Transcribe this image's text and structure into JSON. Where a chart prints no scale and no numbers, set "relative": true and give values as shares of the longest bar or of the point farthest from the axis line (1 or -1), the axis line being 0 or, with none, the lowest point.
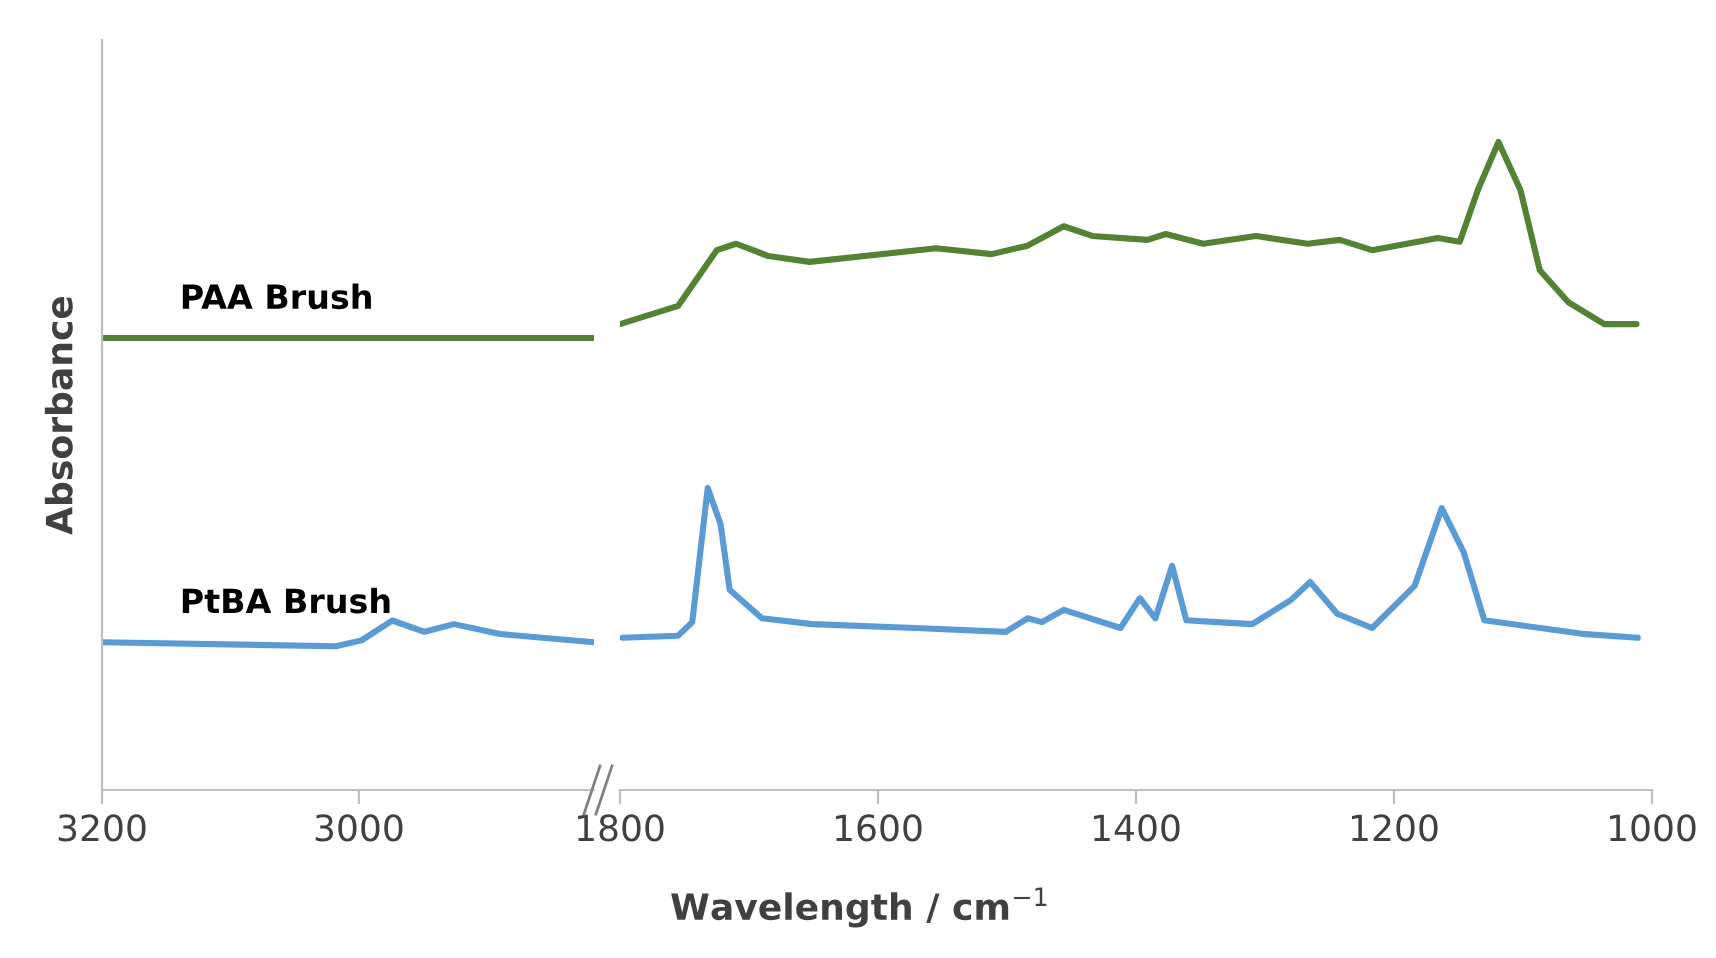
{
  "chart_data": [
    {
      "type": "line",
      "relative": true,
      "ylabel": "Absorbance",
      "xlim": [
        3200,
        2817
      ],
      "xticks": [
        3200,
        3000
      ],
      "grid": false,
      "legend": false,
      "series": [
        {
          "name": "PAA Brush",
          "color": "#548235",
          "x": [
            3200,
            2817
          ],
          "values": [
            1.0,
            1.0
          ]
        },
        {
          "name": "PtBA Brush",
          "color": "#5b9bd5",
          "x": [
            3200,
            3018,
            2998,
            2974,
            2949,
            2926,
            2890,
            2817
          ],
          "values": [
            0.327,
            0.318,
            0.331,
            0.375,
            0.35,
            0.367,
            0.345,
            0.327
          ]
        }
      ]
    },
    {
      "type": "line",
      "relative": true,
      "xlabel": "Wavelength / cm$^{−1}$",
      "xlim": [
        1800,
        1000
      ],
      "xticks": [
        1800,
        1600,
        1400,
        1200,
        1000
      ],
      "grid": false,
      "legend": false,
      "series": [
        {
          "color": "#548235",
          "x": [
            1800,
            1755,
            1725,
            1710,
            1685,
            1653,
            1555,
            1512,
            1484,
            1456,
            1434,
            1391,
            1377,
            1348,
            1307,
            1267,
            1242,
            1217,
            1166,
            1149,
            1135,
            1119,
            1102,
            1087,
            1065,
            1037,
            1012
          ],
          "values": [
            0.719,
            0.747,
            0.833,
            0.843,
            0.824,
            0.815,
            0.836,
            0.827,
            0.84,
            0.87,
            0.855,
            0.849,
            0.858,
            0.843,
            0.855,
            0.843,
            0.849,
            0.833,
            0.852,
            0.846,
            0.926,
            1.0,
            0.926,
            0.802,
            0.753,
            0.719,
            0.719
          ]
        },
        {
          "color": "#5b9bd5",
          "x": [
            1798,
            1755,
            1744,
            1732,
            1722,
            1715,
            1690,
            1651,
            1571,
            1501,
            1484,
            1473,
            1456,
            1412,
            1397,
            1385,
            1372,
            1361,
            1337,
            1310,
            1280,
            1265,
            1244,
            1217,
            1184,
            1163,
            1146,
            1130,
            1054,
            1011
          ],
          "values": [
            0.235,
            0.238,
            0.259,
            0.466,
            0.41,
            0.309,
            0.265,
            0.256,
            0.25,
            0.244,
            0.265,
            0.259,
            0.278,
            0.25,
            0.296,
            0.265,
            0.346,
            0.262,
            0.259,
            0.256,
            0.293,
            0.321,
            0.272,
            0.25,
            0.315,
            0.435,
            0.367,
            0.262,
            0.241,
            0.235
          ]
        }
      ]
    }
  ]
}
